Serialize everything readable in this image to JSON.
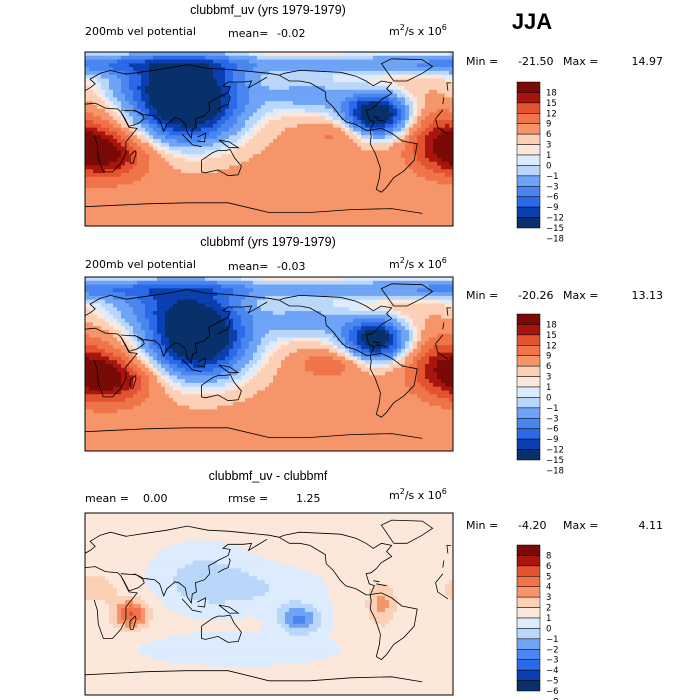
{
  "season": "JJA",
  "colors": {
    "level_colors_main": [
      "#08306b",
      "#0a3fb0",
      "#1550d8",
      "#2a6ae8",
      "#4a86f0",
      "#6ea3f5",
      "#93bef8",
      "#b9d6fb",
      "#dcebfd",
      "#fbe8da",
      "#fcd0b6",
      "#fbb48e",
      "#f6956a",
      "#ef7449",
      "#e45330",
      "#cf331c",
      "#a8150e",
      "#7a0a06"
    ],
    "level_colors_diff": [
      "#08306b",
      "#0a3fb0",
      "#1550d8",
      "#2a6ae8",
      "#4a86f0",
      "#6ea3f5",
      "#93bef8",
      "#b9d6fb",
      "#dcebfd",
      "#fbe8da",
      "#fcd0b6",
      "#fbb48e",
      "#f6956a",
      "#ef7449",
      "#e45330",
      "#cf331c",
      "#a8150e",
      "#7a0a06"
    ],
    "coastline": "#000000"
  },
  "chart_data": [
    {
      "type": "heatmap",
      "title": "clubbmf_uv (yrs 1979-1979)",
      "subtitle_left": "200mb vel potential",
      "mean_label": "mean=",
      "mean_value": "-0.02",
      "units_base": "m",
      "units_exp1": "2",
      "units_mid": "/s x 10",
      "units_exp2": "6",
      "min_label": "Min =",
      "min_value": "-21.50",
      "max_label": "Max =",
      "max_value": "14.97",
      "colorbar_levels": [
        "18",
        "15",
        "12",
        "9",
        "6",
        "3",
        "1",
        "0",
        "−1",
        "−3",
        "−6",
        "−9",
        "−12",
        "−15",
        "−18"
      ],
      "field": {
        "base": 4,
        "features": [
          {
            "lon": 100,
            "lat": 35,
            "amp": -26,
            "sx": 38,
            "sy": 28
          },
          {
            "lon": 80,
            "lat": 60,
            "amp": -8,
            "sx": 50,
            "sy": 15
          },
          {
            "lon": 285,
            "lat": 25,
            "amp": -24,
            "sx": 22,
            "sy": 16
          },
          {
            "lon": 220,
            "lat": 45,
            "amp": -8,
            "sx": 35,
            "sy": 15
          },
          {
            "lon": 20,
            "lat": -15,
            "amp": 12,
            "sx": 30,
            "sy": 18
          },
          {
            "lon": 350,
            "lat": 0,
            "amp": 8,
            "sx": 25,
            "sy": 20
          },
          {
            "lon": 0,
            "lat": 78,
            "amp": -10,
            "sx": 200,
            "sy": 8
          },
          {
            "lon": 250,
            "lat": 5,
            "amp": 4,
            "sx": 20,
            "sy": 10
          }
        ]
      }
    },
    {
      "type": "heatmap",
      "title": "clubbmf (yrs 1979-1979)",
      "subtitle_left": "200mb vel potential",
      "mean_label": "mean=",
      "mean_value": "-0.03",
      "units_base": "m",
      "units_exp1": "2",
      "units_mid": "/s x 10",
      "units_exp2": "6",
      "min_label": "Min =",
      "min_value": "-20.26",
      "max_label": "Max =",
      "max_value": "13.13",
      "colorbar_levels": [
        "18",
        "15",
        "12",
        "9",
        "6",
        "3",
        "1",
        "0",
        "−1",
        "−3",
        "−6",
        "−9",
        "−12",
        "−15",
        "−18"
      ],
      "field": {
        "base": 4,
        "features": [
          {
            "lon": 110,
            "lat": 25,
            "amp": -26,
            "sx": 36,
            "sy": 28
          },
          {
            "lon": 80,
            "lat": 60,
            "amp": -9,
            "sx": 50,
            "sy": 15
          },
          {
            "lon": 285,
            "lat": 25,
            "amp": -22,
            "sx": 22,
            "sy": 16
          },
          {
            "lon": 220,
            "lat": 45,
            "amp": -8,
            "sx": 35,
            "sy": 15
          },
          {
            "lon": 25,
            "lat": -15,
            "amp": 12,
            "sx": 30,
            "sy": 18
          },
          {
            "lon": 350,
            "lat": 0,
            "amp": 8,
            "sx": 25,
            "sy": 20
          },
          {
            "lon": 0,
            "lat": 78,
            "amp": -10,
            "sx": 200,
            "sy": 8
          },
          {
            "lon": 240,
            "lat": 0,
            "amp": 5,
            "sx": 22,
            "sy": 10
          }
        ]
      }
    },
    {
      "type": "heatmap",
      "title": "clubbmf_uv - clubbmf",
      "mean_label": "mean =",
      "mean_value": "0.00",
      "rmse_label": "rmse =",
      "rmse_value": "1.25",
      "units_base": "m",
      "units_exp1": "2",
      "units_mid": "/s x 10",
      "units_exp2": "6",
      "min_label": "Min =",
      "min_value": "-4.20",
      "max_label": "Max =",
      "max_value": "4.11",
      "colorbar_levels": [
        "8",
        "6",
        "5",
        "4",
        "3",
        "2",
        "1",
        "0",
        "−1",
        "−2",
        "−3",
        "−4",
        "−5",
        "−6",
        "−8"
      ],
      "field": {
        "base": 0.3,
        "features": [
          {
            "lon": 45,
            "lat": -10,
            "amp": 3.8,
            "sx": 12,
            "sy": 10
          },
          {
            "lon": 10,
            "lat": 15,
            "amp": 1.5,
            "sx": 15,
            "sy": 10
          },
          {
            "lon": 115,
            "lat": 25,
            "amp": -1.8,
            "sx": 30,
            "sy": 20
          },
          {
            "lon": 170,
            "lat": 15,
            "amp": -1.2,
            "sx": 40,
            "sy": 15
          },
          {
            "lon": 210,
            "lat": -15,
            "amp": -3.5,
            "sx": 15,
            "sy": 10
          },
          {
            "lon": 290,
            "lat": 0,
            "amp": 2,
            "sx": 10,
            "sy": 15
          },
          {
            "lon": 150,
            "lat": -45,
            "amp": -1.2,
            "sx": 60,
            "sy": 10
          }
        ]
      }
    }
  ]
}
